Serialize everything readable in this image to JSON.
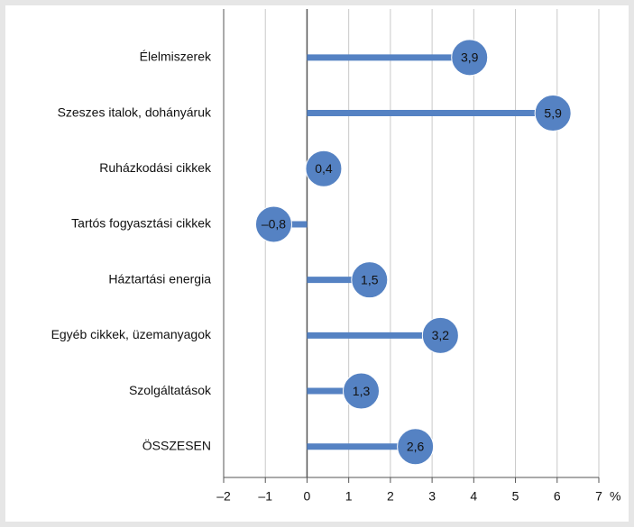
{
  "chart_data": {
    "type": "lollipop",
    "categories": [
      "Élelmiszerek",
      "Szeszes italok, dohányáruk",
      "Ruházkodási cikkek",
      "Tartós fogyasztási cikkek",
      "Háztartási energia",
      "Egyéb cikkek, üzemanyagok",
      "Szolgáltatások",
      "ÖSSZESEN"
    ],
    "values": [
      3.9,
      5.9,
      0.4,
      -0.8,
      1.5,
      3.2,
      1.3,
      2.6
    ],
    "value_labels": [
      "3,9",
      "5,9",
      "0,4",
      "–0,8",
      "1,5",
      "3,2",
      "1,3",
      "2,6"
    ],
    "color": "#5582c3",
    "x_label": "%",
    "xlim": [
      -2,
      7
    ],
    "xticks": [
      {
        "value": -2,
        "label": "–2"
      },
      {
        "value": -1,
        "label": "–1"
      },
      0,
      1,
      2,
      3,
      4,
      5,
      6,
      7
    ],
    "grid": true
  }
}
